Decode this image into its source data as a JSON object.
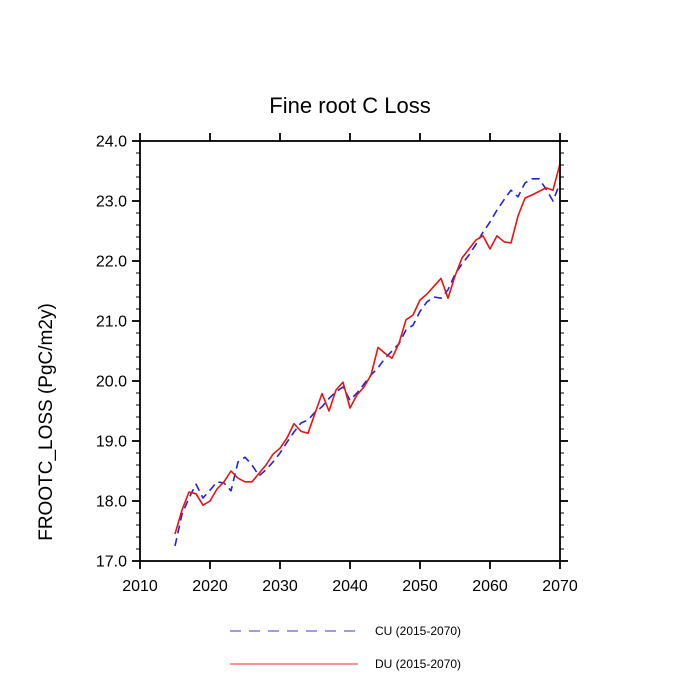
{
  "title": "Fine root C Loss",
  "y_axis_label": "FROOTC_LOSS  (PgC/m2y)",
  "legend": {
    "cu_label": "CU (2015-2070)",
    "du_label": "DU (2015-2070)"
  },
  "colors": {
    "cu_line": "#2222dd",
    "du_line": "#ee1111",
    "axis": "#000000",
    "background": "#ffffff"
  },
  "chart_data": {
    "type": "line",
    "title": "Fine root C Loss",
    "xlabel": "",
    "ylabel": "FROOTC_LOSS  (PgC/m2y)",
    "xlim": [
      2010,
      2070
    ],
    "ylim": [
      17.0,
      24.0
    ],
    "x_ticks": [
      2010,
      2020,
      2030,
      2040,
      2050,
      2060,
      2070
    ],
    "x_tick_labels": [
      "2010",
      "2020",
      "2030",
      "2040",
      "2050",
      "2060",
      "2070"
    ],
    "y_ticks": [
      17.0,
      18.0,
      19.0,
      20.0,
      21.0,
      22.0,
      23.0,
      24.0
    ],
    "y_tick_labels": [
      "17.0",
      "18.0",
      "19.0",
      "20.0",
      "21.0",
      "22.0",
      "23.0",
      "24.0"
    ],
    "y_minor_step": 0.2,
    "grid": false,
    "legend_position": "bottom",
    "x": [
      2015,
      2016,
      2017,
      2018,
      2019,
      2020,
      2021,
      2022,
      2023,
      2024,
      2025,
      2026,
      2027,
      2028,
      2029,
      2030,
      2031,
      2032,
      2033,
      2034,
      2035,
      2036,
      2037,
      2038,
      2039,
      2040,
      2041,
      2042,
      2043,
      2044,
      2045,
      2046,
      2047,
      2048,
      2049,
      2050,
      2051,
      2052,
      2053,
      2054,
      2055,
      2056,
      2057,
      2058,
      2059,
      2060,
      2061,
      2062,
      2063,
      2064,
      2065,
      2066,
      2067,
      2068,
      2069,
      2070
    ],
    "series": [
      {
        "name": "CU (2015-2070)",
        "style": "dashed",
        "color": "#2222dd",
        "values": [
          17.25,
          17.78,
          18.05,
          18.28,
          18.05,
          18.18,
          18.32,
          18.3,
          18.17,
          18.65,
          18.73,
          18.6,
          18.42,
          18.52,
          18.65,
          18.8,
          18.98,
          19.15,
          19.3,
          19.35,
          19.48,
          19.57,
          19.71,
          19.82,
          19.9,
          19.68,
          19.8,
          19.95,
          20.1,
          20.22,
          20.38,
          20.5,
          20.62,
          20.85,
          20.93,
          21.16,
          21.32,
          21.4,
          21.38,
          21.52,
          21.78,
          21.95,
          22.1,
          22.28,
          22.48,
          22.65,
          22.85,
          23.02,
          23.18,
          23.07,
          23.3,
          23.37,
          23.37,
          23.2,
          23.0,
          23.3
        ]
      },
      {
        "name": "DU (2015-2070)",
        "style": "solid",
        "color": "#ee1111",
        "values": [
          17.45,
          17.85,
          18.15,
          18.12,
          17.93,
          18.0,
          18.2,
          18.32,
          18.5,
          18.38,
          18.32,
          18.32,
          18.46,
          18.6,
          18.78,
          18.88,
          19.05,
          19.29,
          19.16,
          19.13,
          19.46,
          19.79,
          19.5,
          19.85,
          19.98,
          19.55,
          19.77,
          19.9,
          20.1,
          20.56,
          20.46,
          20.38,
          20.63,
          21.02,
          21.1,
          21.35,
          21.45,
          21.58,
          21.71,
          21.38,
          21.75,
          22.05,
          22.2,
          22.35,
          22.42,
          22.2,
          22.42,
          22.32,
          22.3,
          22.75,
          23.05,
          23.1,
          23.16,
          23.22,
          23.18,
          23.62
        ]
      }
    ]
  }
}
